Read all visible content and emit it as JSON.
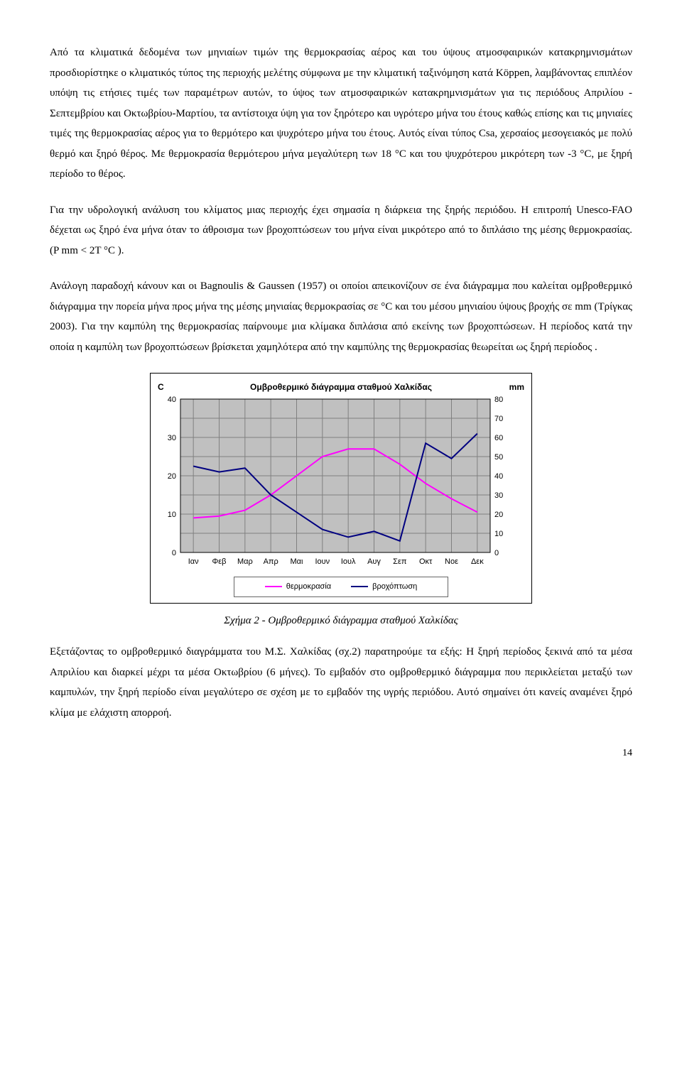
{
  "para1": "Από τα κλιματικά δεδομένα των μηνιαίων τιμών της θερμοκρασίας αέρος και του ύψους ατμοσφαιρικών κατακρημνισμάτων προσδιορίστηκε ο κλιματικός τύπος της περιοχής μελέτης σύμφωνα με την κλιματική ταξινόμηση κατά Köppen, λαμβάνοντας επιπλέον υπόψη τις ετήσιες τιμές των παραμέτρων αυτών, το ύψος των ατμοσφαιρικών κατακρημνισμάτων για τις περιόδους Απριλίου - Σεπτεμβρίου και Οκτωβρίου-Μαρτίου, τα αντίστοιχα ύψη για τον ξηρότερο και υγρότερο μήνα του έτους καθώς επίσης και τις μηνιαίες τιμές της θερμοκρασίας αέρος για το θερμότερο και ψυχρότερο μήνα του έτους. Αυτός είναι τύπος Csa, χερσαίος μεσογειακός με πολύ θερμό και ξηρό θέρος. Με θερμοκρασία θερμότερου μήνα μεγαλύτερη των 18 °C και του ψυχρότερου μικρότερη των -3 °C, με ξηρή περίοδο το θέρος.",
  "para2": "Για την υδρολογική ανάλυση του κλίματος μιας περιοχής  έχει σημασία η διάρκεια της ξηρής περιόδου. Η επιτροπή Unesco-FAO δέχεται ως ξηρό ένα μήνα όταν το άθροισμα των βροχοπτώσεων του μήνα είναι μικρότερο από το διπλάσιο της μέσης θερμοκρασίας. (P mm < 2T °C ).",
  "para3": "Ανάλογη παραδοχή κάνουν και οι Bagnoulis & Gaussen (1957) οι οποίοι απεικονίζουν σε ένα διάγραμμα που καλείται ομβροθερμικό διάγραμμα την πορεία μήνα προς μήνα της μέσης μηνιαίας θερμοκρασίας σε °C και του μέσου μηνιαίου ύψους βροχής σε mm (Τρίγκας 2003). Για την καμπύλη της θερμοκρασίας παίρνουμε μια κλίμακα  διπλάσια από εκείνης των βροχοπτώσεων. Η περίοδος κατά την οποία η καμπύλη των βροχοπτώσεων βρίσκεται χαμηλότερα από την καμπύλης της θερμοκρασίας θεωρείται ως ξηρή περίοδος .",
  "para4": "Εξετάζοντας το ομβροθερμικό διαγράμματα του Μ.Σ. Χαλκίδας (σχ.2) παρατηρούμε τα εξής: Η ξηρή περίοδος ξεκινά από τα μέσα Απριλίου και διαρκεί μέχρι τα μέσα Οκτωβρίου (6 μήνες). Το εμβαδόν στο ομβροθερμικό διάγραμμα που περικλείεται μεταξύ των καμπυλών, την ξηρή περίοδο είναι μεγαλύτερο σε σχέση με το εμβαδόν της υγρής περιόδου. Αυτό σημαίνει ότι κανείς αναμένει ξηρό κλίμα με ελάχιστη απορροή.",
  "caption": "Σχήμα 2 - Ομβροθερμικό διάγραμμα σταθμού Χαλκίδας",
  "pageNumber": "14",
  "chart": {
    "type": "line",
    "title": "Ομβροθερμικό διάγραμμα σταθμού Χαλκίδας",
    "left_unit": "C",
    "right_unit": "mm",
    "months": [
      "Ιαν",
      "Φεβ",
      "Μαρ",
      "Απρ",
      "Μαι",
      "Ιουν",
      "Ιουλ",
      "Αυγ",
      "Σεπ",
      "Οκτ",
      "Νοε",
      "Δεκ"
    ],
    "left_axis": {
      "min": 0,
      "max": 40,
      "step": 10
    },
    "right_axis": {
      "min": 0,
      "max": 80,
      "step": 10
    },
    "series": [
      {
        "name": "θερμοκρασία",
        "axis": "left",
        "color": "#ff00ff",
        "width": 2,
        "values": [
          9,
          9.5,
          11,
          15,
          20,
          25,
          27,
          27,
          23,
          18,
          14,
          10.5
        ]
      },
      {
        "name": "βροχόπτωση",
        "axis": "right",
        "color": "#000080",
        "width": 2,
        "values": [
          45,
          42,
          44,
          30,
          21,
          12,
          8,
          11,
          6,
          57,
          49,
          62
        ]
      }
    ],
    "grid_color": "#808080",
    "background_color": "#c0c0c0",
    "plot_background": "#c0c0c0",
    "font_family": "Arial",
    "tick_fontsize": 11,
    "title_fontsize": 12,
    "legend": [
      "θερμοκρασία",
      "βροχόπτωση"
    ]
  }
}
